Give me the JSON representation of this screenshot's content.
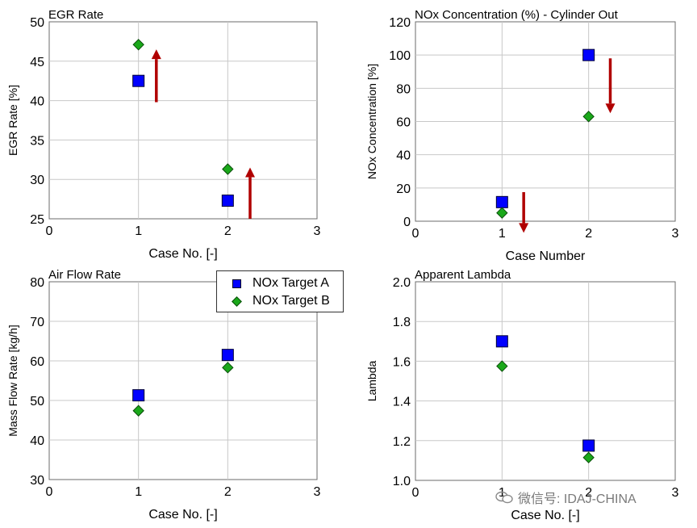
{
  "legend": {
    "items": [
      {
        "label": "NOx Target A",
        "color": "#0000ff",
        "marker": "square"
      },
      {
        "label": "NOx Target B",
        "color": "#1aa81a",
        "marker": "diamond"
      }
    ]
  },
  "watermark": {
    "text": "微信号: IDAJ-CHINA",
    "icon": "wechat-icon"
  },
  "chart_data": [
    {
      "type": "scatter",
      "title": "EGR Rate",
      "xlabel": "Case No. [-]",
      "ylabel": "EGR Rate [%]",
      "xlim": [
        0,
        3
      ],
      "ylim": [
        25,
        50
      ],
      "xticks": [
        0,
        1,
        2,
        3
      ],
      "yticks": [
        25,
        30,
        35,
        40,
        45,
        50
      ],
      "grid": true,
      "series": [
        {
          "name": "NOx Target A",
          "marker": "square",
          "color": "#0000ff",
          "points": [
            [
              1,
              42.5
            ],
            [
              2,
              27.3
            ]
          ]
        },
        {
          "name": "NOx Target B",
          "marker": "diamond",
          "color": "#1aa81a",
          "points": [
            [
              1,
              47.1
            ],
            [
              2,
              31.3
            ]
          ]
        }
      ],
      "arrows": [
        {
          "x": 1.2,
          "from": 39.8,
          "to": 46.5,
          "direction": "up"
        },
        {
          "x": 2.25,
          "from": 25,
          "to": 31.5,
          "direction": "up"
        }
      ]
    },
    {
      "type": "scatter",
      "title": "NOx Concentration (%) - Cylinder Out",
      "xlabel": "Case Number",
      "ylabel": "NOx Concentration [%]",
      "xlim": [
        0,
        3
      ],
      "ylim": [
        0,
        120
      ],
      "xticks": [
        0,
        1,
        2,
        3
      ],
      "yticks": [
        0,
        20,
        40,
        60,
        80,
        100,
        120
      ],
      "grid": true,
      "series": [
        {
          "name": "NOx Target A",
          "marker": "square",
          "color": "#0000ff",
          "points": [
            [
              1,
              11.5
            ],
            [
              2,
              100
            ]
          ]
        },
        {
          "name": "NOx Target B",
          "marker": "diamond",
          "color": "#1aa81a",
          "points": [
            [
              1,
              5
            ],
            [
              2,
              63
            ]
          ]
        }
      ],
      "arrows": [
        {
          "x": 1.25,
          "from": 17.5,
          "to": -7,
          "direction": "down"
        },
        {
          "x": 2.25,
          "from": 98,
          "to": 65,
          "direction": "down"
        }
      ]
    },
    {
      "type": "scatter",
      "title": "Air Flow Rate",
      "xlabel": "Case No. [-]",
      "ylabel": "Mass Flow Rate [kg/h]",
      "xlim": [
        0,
        3
      ],
      "ylim": [
        30,
        80
      ],
      "xticks": [
        0,
        1,
        2,
        3
      ],
      "yticks": [
        30,
        40,
        50,
        60,
        70,
        80
      ],
      "grid": true,
      "series": [
        {
          "name": "NOx Target A",
          "marker": "square",
          "color": "#0000ff",
          "points": [
            [
              1,
              51.3
            ],
            [
              2,
              61.5
            ]
          ]
        },
        {
          "name": "NOx Target B",
          "marker": "diamond",
          "color": "#1aa81a",
          "points": [
            [
              1,
              47.4
            ],
            [
              2,
              58.3
            ]
          ]
        }
      ],
      "arrows": []
    },
    {
      "type": "scatter",
      "title": "Apparent Lambda",
      "xlabel": "Case No. [-]",
      "ylabel": "Lambda",
      "xlim": [
        0,
        3
      ],
      "ylim": [
        1.0,
        2.0
      ],
      "xticks": [
        0,
        1,
        2,
        3
      ],
      "yticks": [
        1.0,
        1.2,
        1.4,
        1.6,
        1.8,
        2.0
      ],
      "ytick_labels": [
        "1.0",
        "1.2",
        "1.4",
        "1.6",
        "1.8",
        "2.0"
      ],
      "grid": true,
      "series": [
        {
          "name": "NOx Target A",
          "marker": "square",
          "color": "#0000ff",
          "points": [
            [
              1,
              1.7
            ],
            [
              2,
              1.175
            ]
          ]
        },
        {
          "name": "NOx Target B",
          "marker": "diamond",
          "color": "#1aa81a",
          "points": [
            [
              1,
              1.575
            ],
            [
              2,
              1.115
            ]
          ]
        }
      ],
      "arrows": []
    }
  ]
}
